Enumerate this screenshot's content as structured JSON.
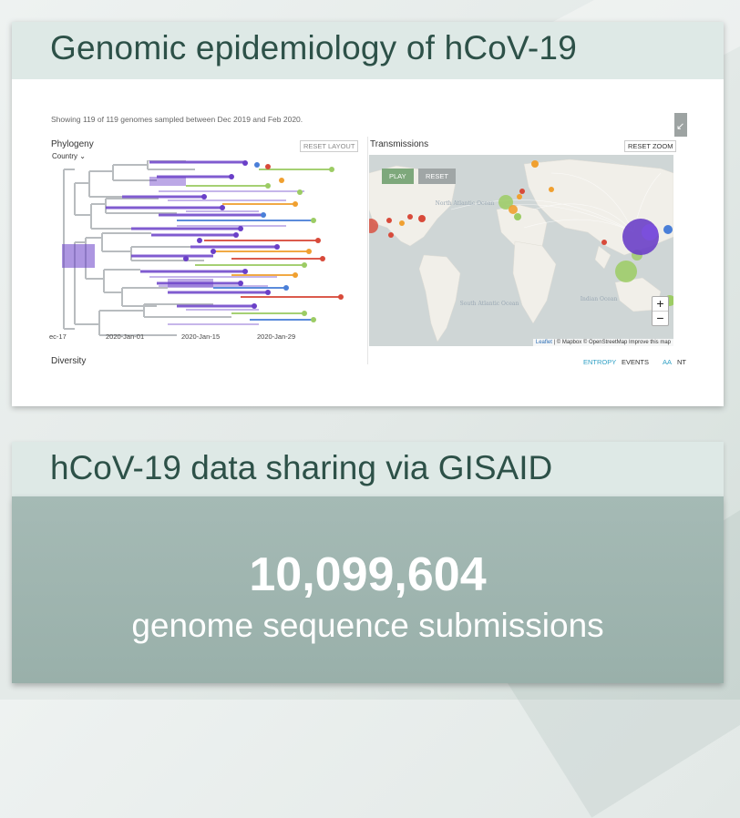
{
  "section1": {
    "title": "Genomic epidemiology of hCoV-19"
  },
  "viz": {
    "showing_text": "Showing 119 of 119 genomes sampled between Dec 2019 and Feb 2020.",
    "phylogeny": {
      "label": "Phylogeny",
      "reset_layout": "RESET LAYOUT",
      "color_by": "Country",
      "x_ticks": [
        "ec-17",
        "2020-Jan-01",
        "2020-Jan-15",
        "2020-Jan-29"
      ]
    },
    "transmissions": {
      "label": "Transmissions",
      "reset_zoom": "RESET ZOOM",
      "play": "PLAY",
      "reset": "RESET",
      "zoom_in": "+",
      "zoom_out": "−",
      "ocean_labels": [
        "North Atlantic Ocean",
        "South Atlantic Ocean",
        "Indian Ocean"
      ],
      "attribution_leaflet": "Leaflet",
      "attribution_rest": " | © Mapbox © OpenStreetMap Improve this map"
    },
    "diversity": {
      "label": "Diversity",
      "tab_entropy": "ENTROPY",
      "tab_events": "EVENTS",
      "tab_aa": "AA",
      "tab_nt": "NT"
    },
    "colors": {
      "purple": "#6a3fc8",
      "red": "#d84a3a",
      "orange": "#f0a030",
      "green": "#9ccc64",
      "blue": "#4a7fd8",
      "branch_gray": "#b8bcbf"
    }
  },
  "section2": {
    "title": "hCoV-19 data sharing via GISAID",
    "count": "10,099,604",
    "subtitle": "genome sequence submissions"
  }
}
